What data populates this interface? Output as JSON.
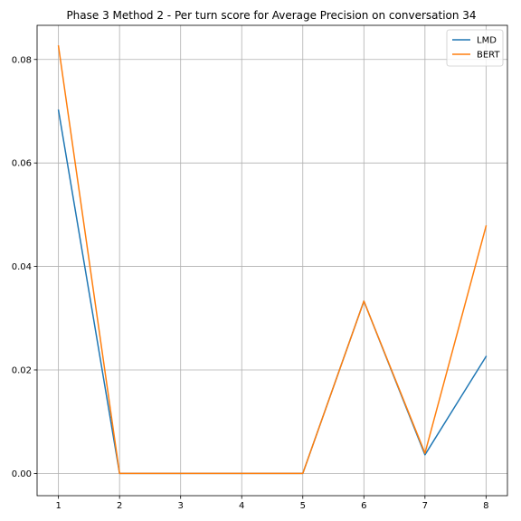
{
  "chart_data": {
    "type": "line",
    "title": "Phase 3 Method 2 - Per turn score for Average Precision on conversation 34",
    "xlabel": "",
    "ylabel": "",
    "x": [
      1,
      2,
      3,
      4,
      5,
      6,
      7,
      8
    ],
    "xticks": [
      1,
      2,
      3,
      4,
      5,
      6,
      7,
      8
    ],
    "yticks": [
      0.0,
      0.02,
      0.04,
      0.06,
      0.08
    ],
    "ytick_labels": [
      "0.00",
      "0.02",
      "0.04",
      "0.06",
      "0.08"
    ],
    "xlim": [
      0.65,
      8.35
    ],
    "ylim": [
      -0.0043,
      0.0866
    ],
    "grid": true,
    "legend_position": "top-right",
    "series": [
      {
        "name": "LMD",
        "color": "#1f77b4",
        "values": [
          0.0702,
          0.0,
          0.0,
          0.0,
          0.0,
          0.0333,
          0.0036,
          0.0226
        ]
      },
      {
        "name": "BERT",
        "color": "#ff7f0e",
        "values": [
          0.0826,
          0.0,
          0.0,
          0.0,
          0.0,
          0.0333,
          0.0039,
          0.0478
        ]
      }
    ]
  }
}
